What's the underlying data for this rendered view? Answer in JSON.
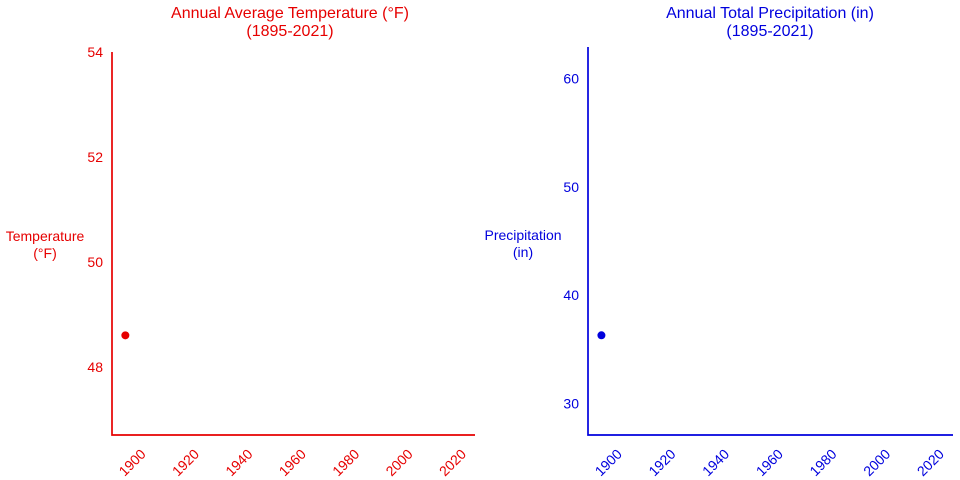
{
  "figure": {
    "background": "#ffffff",
    "temperature_color": "#e60000",
    "precipitation_color": "#0000dd"
  },
  "chart_data": [
    {
      "type": "scatter",
      "title": "Annual Average Temperature (°F)",
      "subtitle": "(1895-2021)",
      "ylabel_line1": "Temperature",
      "ylabel_line2": "(°F)",
      "color": "#e60000",
      "x": [
        1895
      ],
      "y": [
        48.6
      ],
      "xticks": [
        1900,
        1920,
        1940,
        1960,
        1980,
        2000,
        2020
      ],
      "yticks": [
        48,
        50,
        52,
        54
      ],
      "xlim": [
        1890,
        2026
      ],
      "ylim": [
        46.7,
        54.0
      ],
      "grid": false,
      "legend": "none",
      "marker": "filled-circle"
    },
    {
      "type": "scatter",
      "title": "Annual Total Precipitation (in)",
      "subtitle": "(1895-2021)",
      "ylabel_line1": "Precipitation",
      "ylabel_line2": "(in)",
      "color": "#0000dd",
      "x": [
        1895
      ],
      "y": [
        36.3
      ],
      "xticks": [
        1900,
        1920,
        1940,
        1960,
        1980,
        2000,
        2020
      ],
      "yticks": [
        30,
        40,
        50,
        60
      ],
      "xlim": [
        1890,
        2026
      ],
      "ylim": [
        27.1,
        62.9
      ],
      "grid": false,
      "legend": "none",
      "marker": "filled-circle"
    }
  ]
}
